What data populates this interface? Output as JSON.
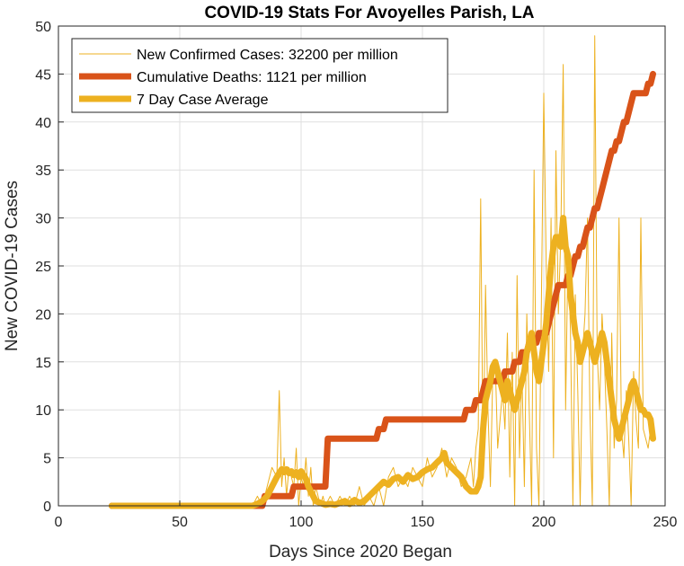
{
  "chart_data": {
    "type": "line",
    "title": "COVID-19 Stats For Avoyelles Parish, LA",
    "xlabel": "Days Since 2020 Began",
    "ylabel": "New COVID-19 Cases",
    "xlim": [
      0,
      250
    ],
    "ylim": [
      0,
      50
    ],
    "xticks": [
      0,
      50,
      100,
      150,
      200,
      250
    ],
    "yticks": [
      0,
      5,
      10,
      15,
      20,
      25,
      30,
      35,
      40,
      45,
      50
    ],
    "grid": true,
    "legend_position": "top-left",
    "series": [
      {
        "name": "New Confirmed Cases: 32200 per million",
        "color": "#EDB120",
        "style": "thin",
        "x": [
          22,
          80,
          82,
          84,
          86,
          88,
          90,
          91,
          92,
          93,
          94,
          95,
          96,
          97,
          98,
          99,
          100,
          101,
          102,
          103,
          104,
          105,
          106,
          107,
          108,
          109,
          110,
          112,
          114,
          116,
          118,
          120,
          122,
          124,
          126,
          128,
          130,
          132,
          134,
          136,
          138,
          140,
          142,
          144,
          146,
          148,
          150,
          152,
          154,
          156,
          158,
          160,
          162,
          164,
          166,
          168,
          170,
          171,
          172,
          173,
          174,
          175,
          176,
          177,
          178,
          179,
          180,
          181,
          182,
          183,
          184,
          185,
          186,
          187,
          188,
          189,
          190,
          191,
          192,
          193,
          194,
          195,
          196,
          197,
          198,
          199,
          200,
          201,
          202,
          203,
          204,
          205,
          206,
          207,
          208,
          209,
          210,
          211,
          212,
          213,
          214,
          215,
          216,
          217,
          218,
          219,
          220,
          221,
          222,
          223,
          224,
          225,
          226,
          227,
          228,
          229,
          230,
          231,
          232,
          233,
          234,
          235,
          236,
          237,
          238,
          239,
          240,
          241,
          242,
          243,
          244,
          245
        ],
        "values": [
          0,
          0,
          1,
          0,
          2,
          4,
          3,
          12,
          2,
          5,
          1,
          4,
          3,
          2,
          6,
          0,
          3,
          2,
          5,
          1,
          4,
          0,
          2,
          1,
          0,
          1,
          0,
          1,
          0,
          1,
          0,
          1,
          0,
          2,
          0,
          1,
          0,
          2,
          0,
          3,
          4,
          2,
          3,
          2,
          4,
          3,
          2,
          5,
          3,
          4,
          6,
          3,
          5,
          4,
          2,
          3,
          5,
          2,
          6,
          8,
          32,
          4,
          23,
          10,
          2,
          14,
          15,
          6,
          9,
          12,
          8,
          18,
          3,
          16,
          0,
          24,
          5,
          14,
          2,
          20,
          10,
          0,
          35,
          6,
          0,
          21,
          43,
          25,
          14,
          30,
          5,
          37,
          20,
          28,
          46,
          10,
          27,
          18,
          0,
          22,
          12,
          0,
          16,
          20,
          30,
          10,
          0,
          49,
          16,
          10,
          20,
          15,
          8,
          0,
          18,
          6,
          11,
          30,
          8,
          5,
          12,
          7,
          0,
          14,
          9,
          6,
          30,
          8,
          7,
          6,
          8,
          9
        ]
      },
      {
        "name": "Cumulative Deaths: 1121 per million",
        "color": "#D95319",
        "style": "thick",
        "x": [
          22,
          84,
          85,
          96,
          97,
          110,
          111,
          131,
          132,
          134,
          135,
          167,
          168,
          169,
          170,
          171,
          172,
          173,
          174,
          175,
          176,
          183,
          184,
          187,
          188,
          190,
          191,
          193,
          194,
          197,
          198,
          201,
          202,
          203,
          204,
          205,
          206,
          209,
          210,
          211,
          212,
          213,
          214,
          215,
          216,
          217,
          218,
          219,
          220,
          221,
          222,
          223,
          224,
          225,
          226,
          227,
          228,
          229,
          230,
          231,
          232,
          233,
          234,
          235,
          236,
          237,
          238,
          239,
          240,
          241,
          242,
          243,
          244,
          245
        ],
        "values": [
          0,
          0,
          1,
          1,
          2,
          2,
          7,
          7,
          8,
          8,
          9,
          9,
          10,
          10,
          10,
          10,
          11,
          11,
          11,
          12,
          13,
          13,
          14,
          14,
          15,
          15,
          16,
          16,
          17,
          17,
          18,
          18,
          19,
          20,
          21,
          22,
          23,
          23,
          24,
          24,
          25,
          26,
          26,
          27,
          27,
          28,
          29,
          29,
          30,
          31,
          31,
          32,
          33,
          34,
          35,
          36,
          37,
          37,
          38,
          38,
          39,
          40,
          40,
          41,
          42,
          43,
          43,
          43,
          43,
          43,
          43,
          44,
          44,
          45
        ]
      },
      {
        "name": "7 Day Case Average",
        "color": "#EDB120",
        "style": "thick",
        "x": [
          22,
          80,
          82,
          84,
          86,
          88,
          90,
          92,
          93,
          94,
          95,
          96,
          97,
          98,
          99,
          100,
          101,
          102,
          103,
          104,
          105,
          106,
          108,
          110,
          112,
          114,
          116,
          118,
          120,
          122,
          124,
          126,
          128,
          130,
          132,
          134,
          136,
          138,
          140,
          142,
          144,
          146,
          148,
          150,
          152,
          154,
          156,
          158,
          159,
          160,
          162,
          164,
          166,
          168,
          170,
          172,
          173,
          174,
          175,
          176,
          177,
          178,
          179,
          180,
          181,
          182,
          183,
          184,
          185,
          186,
          187,
          188,
          189,
          190,
          191,
          192,
          193,
          194,
          195,
          196,
          197,
          198,
          199,
          200,
          201,
          202,
          203,
          204,
          205,
          206,
          207,
          208,
          209,
          210,
          211,
          212,
          213,
          214,
          215,
          216,
          217,
          218,
          219,
          220,
          221,
          222,
          223,
          224,
          225,
          226,
          227,
          228,
          229,
          230,
          231,
          232,
          233,
          234,
          235,
          236,
          237,
          238,
          239,
          240,
          241,
          242,
          243,
          244,
          245
        ],
        "values": [
          0,
          0,
          0.2,
          0.5,
          1,
          2,
          3,
          3.8,
          3.5,
          3.8,
          3.4,
          3.6,
          3.2,
          3.5,
          3,
          3.6,
          3.2,
          2.8,
          2,
          1.5,
          1,
          0.5,
          0.3,
          0.1,
          0.2,
          0.1,
          0.3,
          0.5,
          0.2,
          0.6,
          0.3,
          0.5,
          1,
          1.5,
          2,
          2.5,
          2.2,
          2.8,
          3,
          2.5,
          3.2,
          2.8,
          3,
          3.5,
          3.8,
          4,
          4.5,
          5,
          5.5,
          4.5,
          4,
          3.5,
          3,
          2,
          1.5,
          1.5,
          2,
          3,
          8,
          11,
          12,
          13,
          14.5,
          15,
          14,
          13,
          12,
          11,
          13,
          12,
          11,
          10,
          11,
          12,
          13,
          14,
          16,
          17,
          18,
          16,
          14,
          13,
          15,
          17,
          19,
          22,
          25,
          27,
          28,
          28,
          27,
          30,
          27,
          26,
          22,
          20,
          18,
          17,
          15,
          16,
          17,
          18,
          17,
          16,
          15,
          16,
          17,
          18,
          17,
          15,
          13,
          11,
          9,
          8,
          7,
          8,
          9,
          10,
          11,
          12.5,
          13,
          12,
          11,
          10,
          10,
          9.5,
          9.5,
          9,
          7
        ]
      }
    ]
  }
}
